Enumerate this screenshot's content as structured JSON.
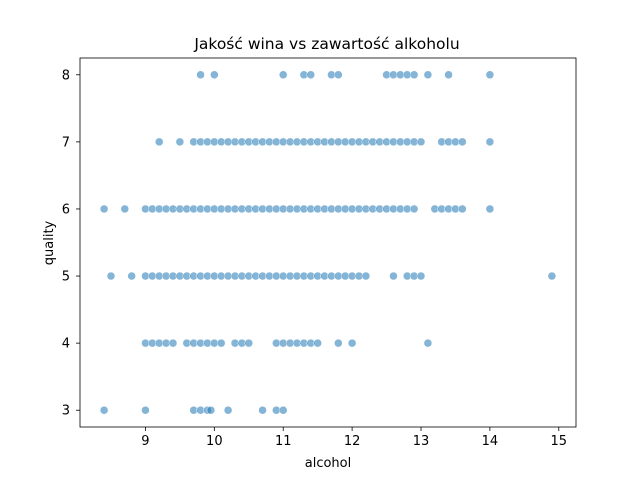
{
  "chart_data": {
    "type": "scatter",
    "title": "Jakość wina vs zawartość alkoholu",
    "xlabel": "alcohol",
    "ylabel": "quality",
    "xlim": [
      8.05,
      15.25
    ],
    "ylim": [
      2.75,
      8.25
    ],
    "xticks": [
      9,
      10,
      11,
      12,
      13,
      14,
      15
    ],
    "yticks": [
      3,
      4,
      5,
      6,
      7,
      8
    ],
    "grid": false,
    "legend": "none",
    "point_color": "#1f77b4",
    "point_alpha": 0.55,
    "series": [
      {
        "points": [
          [
            9.8,
            8
          ],
          [
            10.0,
            8
          ],
          [
            11.0,
            8
          ],
          [
            11.3,
            8
          ],
          [
            11.4,
            8
          ],
          [
            11.7,
            8
          ],
          [
            11.8,
            8
          ],
          [
            12.5,
            8
          ],
          [
            12.6,
            8
          ],
          [
            12.7,
            8
          ],
          [
            12.8,
            8
          ],
          [
            12.9,
            8
          ],
          [
            13.1,
            8
          ],
          [
            13.4,
            8
          ],
          [
            14.0,
            8
          ],
          [
            9.2,
            7
          ],
          [
            9.5,
            7
          ],
          [
            9.7,
            7
          ],
          [
            9.8,
            7
          ],
          [
            9.9,
            7
          ],
          [
            10.0,
            7
          ],
          [
            10.1,
            7
          ],
          [
            10.2,
            7
          ],
          [
            10.3,
            7
          ],
          [
            10.4,
            7
          ],
          [
            10.5,
            7
          ],
          [
            10.6,
            7
          ],
          [
            10.7,
            7
          ],
          [
            10.8,
            7
          ],
          [
            10.9,
            7
          ],
          [
            11.0,
            7
          ],
          [
            11.1,
            7
          ],
          [
            11.2,
            7
          ],
          [
            11.3,
            7
          ],
          [
            11.4,
            7
          ],
          [
            11.5,
            7
          ],
          [
            11.6,
            7
          ],
          [
            11.7,
            7
          ],
          [
            11.8,
            7
          ],
          [
            11.9,
            7
          ],
          [
            12.0,
            7
          ],
          [
            12.1,
            7
          ],
          [
            12.2,
            7
          ],
          [
            12.3,
            7
          ],
          [
            12.4,
            7
          ],
          [
            12.5,
            7
          ],
          [
            12.6,
            7
          ],
          [
            12.7,
            7
          ],
          [
            12.8,
            7
          ],
          [
            12.9,
            7
          ],
          [
            13.0,
            7
          ],
          [
            13.3,
            7
          ],
          [
            13.4,
            7
          ],
          [
            13.5,
            7
          ],
          [
            13.6,
            7
          ],
          [
            14.0,
            7
          ],
          [
            8.4,
            6
          ],
          [
            8.7,
            6
          ],
          [
            9.0,
            6
          ],
          [
            9.1,
            6
          ],
          [
            9.2,
            6
          ],
          [
            9.3,
            6
          ],
          [
            9.4,
            6
          ],
          [
            9.5,
            6
          ],
          [
            9.6,
            6
          ],
          [
            9.7,
            6
          ],
          [
            9.8,
            6
          ],
          [
            9.9,
            6
          ],
          [
            10.0,
            6
          ],
          [
            10.1,
            6
          ],
          [
            10.2,
            6
          ],
          [
            10.3,
            6
          ],
          [
            10.4,
            6
          ],
          [
            10.5,
            6
          ],
          [
            10.6,
            6
          ],
          [
            10.7,
            6
          ],
          [
            10.8,
            6
          ],
          [
            10.9,
            6
          ],
          [
            11.0,
            6
          ],
          [
            11.1,
            6
          ],
          [
            11.2,
            6
          ],
          [
            11.3,
            6
          ],
          [
            11.4,
            6
          ],
          [
            11.5,
            6
          ],
          [
            11.6,
            6
          ],
          [
            11.7,
            6
          ],
          [
            11.8,
            6
          ],
          [
            11.9,
            6
          ],
          [
            12.0,
            6
          ],
          [
            12.1,
            6
          ],
          [
            12.2,
            6
          ],
          [
            12.3,
            6
          ],
          [
            12.4,
            6
          ],
          [
            12.5,
            6
          ],
          [
            12.6,
            6
          ],
          [
            12.7,
            6
          ],
          [
            12.8,
            6
          ],
          [
            12.9,
            6
          ],
          [
            13.2,
            6
          ],
          [
            13.3,
            6
          ],
          [
            13.4,
            6
          ],
          [
            13.5,
            6
          ],
          [
            13.6,
            6
          ],
          [
            14.0,
            6
          ],
          [
            8.5,
            5
          ],
          [
            8.8,
            5
          ],
          [
            9.0,
            5
          ],
          [
            9.1,
            5
          ],
          [
            9.2,
            5
          ],
          [
            9.3,
            5
          ],
          [
            9.4,
            5
          ],
          [
            9.5,
            5
          ],
          [
            9.6,
            5
          ],
          [
            9.7,
            5
          ],
          [
            9.8,
            5
          ],
          [
            9.9,
            5
          ],
          [
            10.0,
            5
          ],
          [
            10.1,
            5
          ],
          [
            10.2,
            5
          ],
          [
            10.3,
            5
          ],
          [
            10.4,
            5
          ],
          [
            10.5,
            5
          ],
          [
            10.6,
            5
          ],
          [
            10.7,
            5
          ],
          [
            10.8,
            5
          ],
          [
            10.9,
            5
          ],
          [
            11.0,
            5
          ],
          [
            11.1,
            5
          ],
          [
            11.2,
            5
          ],
          [
            11.3,
            5
          ],
          [
            11.4,
            5
          ],
          [
            11.5,
            5
          ],
          [
            11.6,
            5
          ],
          [
            11.7,
            5
          ],
          [
            11.8,
            5
          ],
          [
            11.9,
            5
          ],
          [
            12.0,
            5
          ],
          [
            12.1,
            5
          ],
          [
            12.2,
            5
          ],
          [
            12.6,
            5
          ],
          [
            12.8,
            5
          ],
          [
            12.9,
            5
          ],
          [
            13.0,
            5
          ],
          [
            14.9,
            5
          ],
          [
            9.0,
            4
          ],
          [
            9.1,
            4
          ],
          [
            9.2,
            4
          ],
          [
            9.3,
            4
          ],
          [
            9.4,
            4
          ],
          [
            9.6,
            4
          ],
          [
            9.7,
            4
          ],
          [
            9.8,
            4
          ],
          [
            9.9,
            4
          ],
          [
            10.0,
            4
          ],
          [
            10.1,
            4
          ],
          [
            10.3,
            4
          ],
          [
            10.4,
            4
          ],
          [
            10.5,
            4
          ],
          [
            10.9,
            4
          ],
          [
            11.0,
            4
          ],
          [
            11.1,
            4
          ],
          [
            11.2,
            4
          ],
          [
            11.3,
            4
          ],
          [
            11.4,
            4
          ],
          [
            11.5,
            4
          ],
          [
            11.8,
            4
          ],
          [
            12.0,
            4
          ],
          [
            13.1,
            4
          ],
          [
            8.4,
            3
          ],
          [
            9.0,
            3
          ],
          [
            9.7,
            3
          ],
          [
            9.8,
            3
          ],
          [
            9.9,
            3
          ],
          [
            9.95,
            3
          ],
          [
            10.2,
            3
          ],
          [
            10.7,
            3
          ],
          [
            10.9,
            3
          ],
          [
            11.0,
            3
          ]
        ]
      }
    ]
  }
}
